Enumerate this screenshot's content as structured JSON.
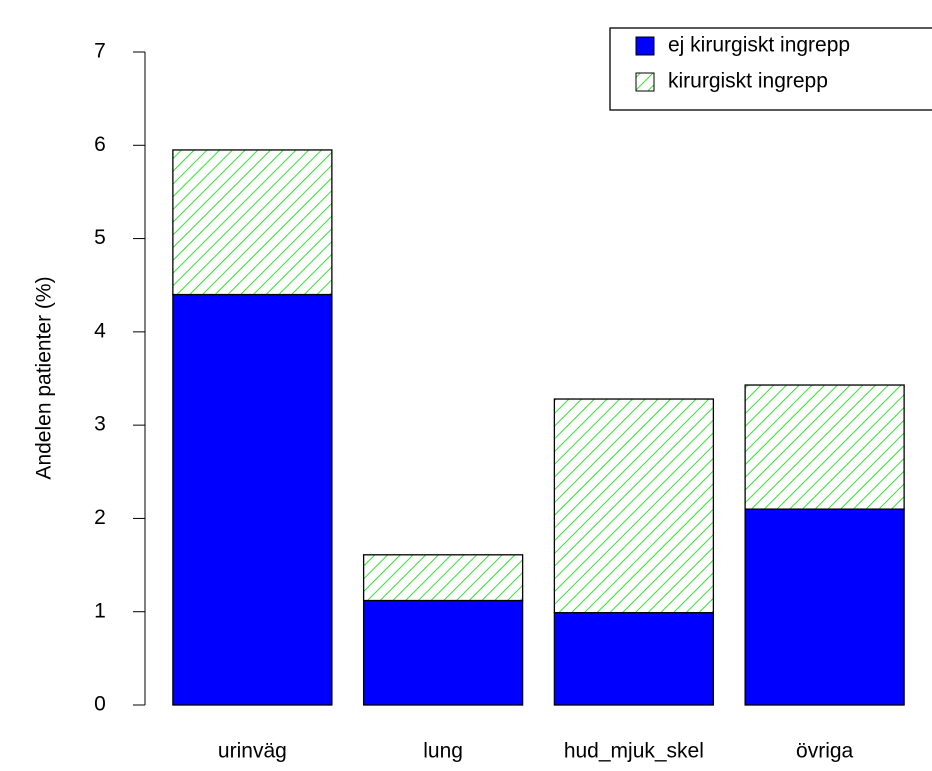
{
  "chart_data": {
    "type": "stacked_bar",
    "y_label": "Andelen patienter (%)",
    "categories": [
      "urinväg",
      "lung",
      "hud_mjuk_skel",
      "övriga"
    ],
    "series": [
      {
        "name": "ej kirurgiskt ingrepp",
        "color": "#0000ff",
        "values": [
          4.4,
          1.12,
          0.99,
          2.1
        ]
      },
      {
        "name": "kirurgiskt ingrepp",
        "color": "#00dd00",
        "values": [
          1.55,
          0.49,
          2.29,
          1.33
        ],
        "hatched": true
      }
    ],
    "ylim": [
      0,
      7
    ],
    "yticks": [
      0,
      1,
      2,
      3,
      4,
      5,
      6,
      7
    ],
    "legend": "topright"
  }
}
